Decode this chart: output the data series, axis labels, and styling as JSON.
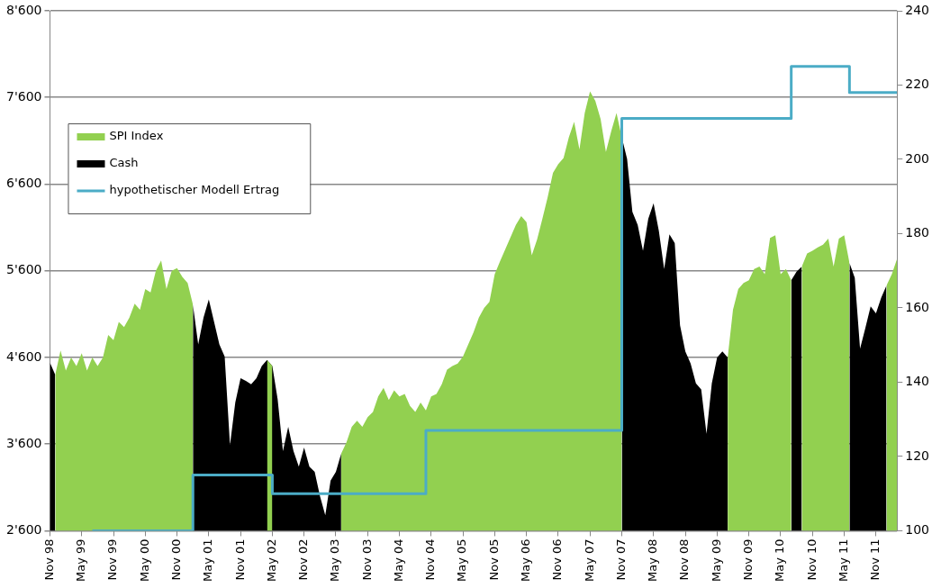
{
  "chart_data": {
    "type": "area",
    "x": [
      "1998-11",
      "1998-12",
      "1999-01",
      "1999-02",
      "1999-03",
      "1999-04",
      "1999-05",
      "1999-06",
      "1999-07",
      "1999-08",
      "1999-09",
      "1999-10",
      "1999-11",
      "1999-12",
      "2000-01",
      "2000-02",
      "2000-03",
      "2000-04",
      "2000-05",
      "2000-06",
      "2000-07",
      "2000-08",
      "2000-09",
      "2000-10",
      "2000-11",
      "2000-12",
      "2001-01",
      "2001-02",
      "2001-03",
      "2001-04",
      "2001-05",
      "2001-06",
      "2001-07",
      "2001-08",
      "2001-09",
      "2001-10",
      "2001-11",
      "2001-12",
      "2002-01",
      "2002-02",
      "2002-03",
      "2002-04",
      "2002-05",
      "2002-06",
      "2002-07",
      "2002-08",
      "2002-09",
      "2002-10",
      "2002-11",
      "2002-12",
      "2003-01",
      "2003-02",
      "2003-03",
      "2003-04",
      "2003-05",
      "2003-06",
      "2003-07",
      "2003-08",
      "2003-09",
      "2003-10",
      "2003-11",
      "2003-12",
      "2004-01",
      "2004-02",
      "2004-03",
      "2004-04",
      "2004-05",
      "2004-06",
      "2004-07",
      "2004-08",
      "2004-09",
      "2004-10",
      "2004-11",
      "2004-12",
      "2005-01",
      "2005-02",
      "2005-03",
      "2005-04",
      "2005-05",
      "2005-06",
      "2005-07",
      "2005-08",
      "2005-09",
      "2005-10",
      "2005-11",
      "2005-12",
      "2006-01",
      "2006-02",
      "2006-03",
      "2006-04",
      "2006-05",
      "2006-06",
      "2006-07",
      "2006-08",
      "2006-09",
      "2006-10",
      "2006-11",
      "2006-12",
      "2007-01",
      "2007-02",
      "2007-03",
      "2007-04",
      "2007-05",
      "2007-06",
      "2007-07",
      "2007-08",
      "2007-09",
      "2007-10",
      "2007-11",
      "2007-12",
      "2008-01",
      "2008-02",
      "2008-03",
      "2008-04",
      "2008-05",
      "2008-06",
      "2008-07",
      "2008-08",
      "2008-09",
      "2008-10",
      "2008-11",
      "2008-12",
      "2009-01",
      "2009-02",
      "2009-03",
      "2009-04",
      "2009-05",
      "2009-06",
      "2009-07",
      "2009-08",
      "2009-09",
      "2009-10",
      "2009-11",
      "2009-12",
      "2010-01",
      "2010-02",
      "2010-03",
      "2010-04",
      "2010-05",
      "2010-06",
      "2010-07",
      "2010-08",
      "2010-09",
      "2010-10",
      "2010-11",
      "2010-12",
      "2011-01",
      "2011-02",
      "2011-03",
      "2011-04",
      "2011-05",
      "2011-06",
      "2011-07",
      "2011-08",
      "2011-09",
      "2011-10",
      "2011-11",
      "2011-12",
      "2012-01",
      "2012-02",
      "2012-03"
    ],
    "series": [
      {
        "name": "SPI Index",
        "color": "#92d050",
        "values": [
          null,
          4400,
          4680,
          4450,
          4600,
          4500,
          4650,
          4450,
          4600,
          4500,
          4600,
          4860,
          4800,
          5010,
          4950,
          5060,
          5220,
          5150,
          5390,
          5350,
          5600,
          5720,
          5390,
          5600,
          5630,
          5530,
          5460,
          5210,
          null,
          null,
          null,
          null,
          null,
          null,
          null,
          null,
          null,
          null,
          null,
          null,
          null,
          4570,
          4500,
          null,
          null,
          null,
          null,
          null,
          null,
          null,
          null,
          null,
          null,
          null,
          null,
          3490,
          3620,
          3800,
          3870,
          3800,
          3910,
          3970,
          4150,
          4250,
          4110,
          4220,
          4150,
          4180,
          4040,
          3970,
          4080,
          3990,
          4150,
          4180,
          4290,
          4460,
          4500,
          4530,
          4610,
          4750,
          4890,
          5060,
          5170,
          5240,
          5560,
          5710,
          5850,
          5990,
          6130,
          6230,
          6160,
          5780,
          5960,
          6200,
          6450,
          6730,
          6830,
          6900,
          7140,
          7320,
          7000,
          7420,
          7670,
          7560,
          7350,
          6970,
          7210,
          7420,
          7140,
          null,
          null,
          null,
          null,
          null,
          null,
          null,
          null,
          null,
          null,
          null,
          null,
          null,
          null,
          null,
          null,
          null,
          null,
          null,
          4600,
          5150,
          5390,
          5460,
          5490,
          5620,
          5650,
          5560,
          5980,
          6010,
          5560,
          5620,
          5490,
          null,
          5650,
          5800,
          5830,
          5870,
          5900,
          5970,
          5650,
          5970,
          6010,
          5690,
          null,
          null,
          null,
          null,
          null,
          null,
          5430,
          5560,
          5740
        ]
      },
      {
        "name": "Cash",
        "color": "#000000",
        "values": [
          4540,
          4400,
          null,
          null,
          null,
          null,
          null,
          null,
          null,
          null,
          null,
          null,
          null,
          null,
          null,
          null,
          null,
          null,
          null,
          null,
          null,
          null,
          null,
          null,
          null,
          null,
          null,
          5210,
          4750,
          5060,
          5270,
          5010,
          4750,
          4610,
          3590,
          4080,
          4360,
          4330,
          4290,
          4360,
          4500,
          4570,
          4500,
          4120,
          3520,
          3800,
          3520,
          3340,
          3560,
          3340,
          3280,
          3000,
          2780,
          3180,
          3280,
          3490,
          null,
          null,
          null,
          null,
          null,
          null,
          null,
          null,
          null,
          null,
          null,
          null,
          null,
          null,
          null,
          null,
          null,
          null,
          null,
          null,
          null,
          null,
          null,
          null,
          null,
          null,
          null,
          null,
          null,
          null,
          null,
          null,
          null,
          null,
          null,
          null,
          null,
          null,
          null,
          null,
          null,
          null,
          null,
          null,
          null,
          null,
          null,
          null,
          null,
          null,
          null,
          null,
          7140,
          6890,
          6280,
          6130,
          5830,
          6200,
          6380,
          6060,
          5620,
          6020,
          5920,
          4970,
          4670,
          4530,
          4300,
          4230,
          3720,
          4300,
          4600,
          4670,
          4600,
          null,
          null,
          null,
          null,
          null,
          null,
          null,
          null,
          null,
          null,
          null,
          5490,
          5590,
          5650,
          null,
          null,
          null,
          null,
          null,
          null,
          null,
          null,
          5690,
          5520,
          4700,
          4940,
          5190,
          5110,
          5290,
          5430,
          null,
          null
        ]
      },
      {
        "name": "hypothetischer Modell Ertrag",
        "type": "step",
        "axis": "y2",
        "color": "#4bacc6",
        "x": [
          "1999-07",
          "2001-02",
          "2002-05",
          "2004-10",
          "2007-11",
          "2010-07",
          "2011-06",
          "2012-03"
        ],
        "values": [
          100,
          115,
          110,
          127,
          211,
          225,
          218,
          218
        ]
      }
    ],
    "xlim": [
      "1998-11",
      "2012-03"
    ],
    "xticks": [
      {
        "value": "1998-11",
        "label": "Nov 98"
      },
      {
        "value": "1999-05",
        "label": "May 99"
      },
      {
        "value": "1999-11",
        "label": "Nov 99"
      },
      {
        "value": "2000-05",
        "label": "May 00"
      },
      {
        "value": "2000-11",
        "label": "Nov 00"
      },
      {
        "value": "2001-05",
        "label": "May 01"
      },
      {
        "value": "2001-11",
        "label": "Nov 01"
      },
      {
        "value": "2002-05",
        "label": "May 02"
      },
      {
        "value": "2002-11",
        "label": "Nov 02"
      },
      {
        "value": "2003-05",
        "label": "May 03"
      },
      {
        "value": "2003-11",
        "label": "Nov 03"
      },
      {
        "value": "2004-05",
        "label": "May 04"
      },
      {
        "value": "2004-11",
        "label": "Nov 04"
      },
      {
        "value": "2005-05",
        "label": "May 05"
      },
      {
        "value": "2005-11",
        "label": "Nov 05"
      },
      {
        "value": "2006-05",
        "label": "May 06"
      },
      {
        "value": "2006-11",
        "label": "Nov 06"
      },
      {
        "value": "2007-05",
        "label": "May 07"
      },
      {
        "value": "2007-11",
        "label": "Nov 07"
      },
      {
        "value": "2008-05",
        "label": "May 08"
      },
      {
        "value": "2008-11",
        "label": "Nov 08"
      },
      {
        "value": "2009-05",
        "label": "May 09"
      },
      {
        "value": "2009-11",
        "label": "Nov 09"
      },
      {
        "value": "2010-05",
        "label": "May 10"
      },
      {
        "value": "2010-11",
        "label": "Nov 10"
      },
      {
        "value": "2011-05",
        "label": "May 11"
      },
      {
        "value": "2011-11",
        "label": "Nov 11"
      }
    ],
    "ylim": [
      2600,
      8600
    ],
    "yticks": [
      {
        "value": 2600,
        "label": "2'600"
      },
      {
        "value": 3600,
        "label": "3'600"
      },
      {
        "value": 4600,
        "label": "4'600"
      },
      {
        "value": 5600,
        "label": "5'600"
      },
      {
        "value": 6600,
        "label": "6'600"
      },
      {
        "value": 7600,
        "label": "7'600"
      },
      {
        "value": 8600,
        "label": "8'600"
      }
    ],
    "y2lim": [
      100,
      240
    ],
    "y2ticks": [
      100,
      120,
      140,
      160,
      180,
      200,
      220,
      240
    ],
    "grid": "y",
    "legend": "top left"
  }
}
